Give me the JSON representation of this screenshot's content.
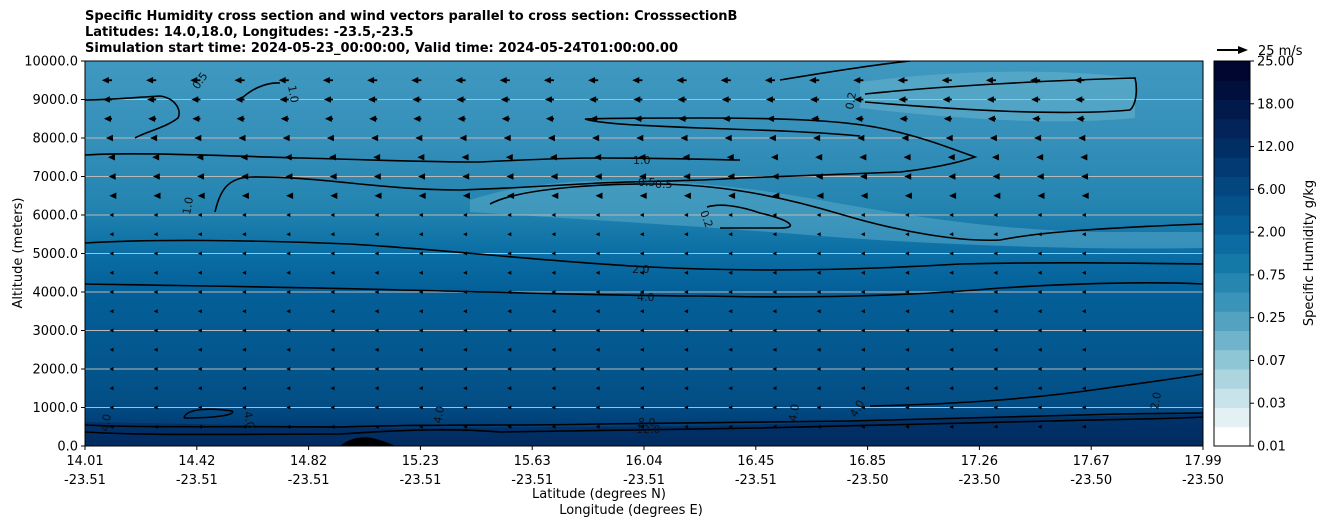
{
  "chart_data": {
    "type": "heatmap",
    "title_lines": [
      "Specific Humidity cross section and wind vectors parallel to cross section: CrosssectionB",
      "Latitudes: 14.0,18.0, Longitudes: -23.5,-23.5",
      "Simulation start time: 2024-05-23_00:00:00, Valid time: 2024-05-24T01:00:00.00"
    ],
    "ylabel": "Altitude (meters)",
    "xlabel_lat": "Latitude (degrees N)",
    "xlabel_lon": "Longitude (degrees E)",
    "ylim": [
      0,
      10000
    ],
    "y_ticks": [
      "0.0",
      "1000.0",
      "2000.0",
      "3000.0",
      "4000.0",
      "5000.0",
      "6000.0",
      "7000.0",
      "8000.0",
      "9000.0",
      "10000.0"
    ],
    "x_ticks": [
      {
        "lat": "14.01",
        "lon": "-23.51"
      },
      {
        "lat": "14.42",
        "lon": "-23.51"
      },
      {
        "lat": "14.82",
        "lon": "-23.51"
      },
      {
        "lat": "15.23",
        "lon": "-23.51"
      },
      {
        "lat": "15.63",
        "lon": "-23.51"
      },
      {
        "lat": "16.04",
        "lon": "-23.51"
      },
      {
        "lat": "16.45",
        "lon": "-23.51"
      },
      {
        "lat": "16.85",
        "lon": "-23.50"
      },
      {
        "lat": "17.26",
        "lon": "-23.50"
      },
      {
        "lat": "17.67",
        "lon": "-23.50"
      },
      {
        "lat": "17.99",
        "lon": "-23.50"
      }
    ],
    "colorbar": {
      "label": "Specific Humidity g/kg",
      "levels": [
        "0.01",
        "0.03",
        "0.07",
        "0.25",
        "0.75",
        "2.00",
        "6.00",
        "12.00",
        "18.00",
        "25.00"
      ],
      "colors": [
        "#ffffff",
        "#e4f1f4",
        "#c8e3ea",
        "#acd5e0",
        "#8fc6d6",
        "#70b4cb",
        "#52a2c0",
        "#3a93b8",
        "#2686b0",
        "#1579a8",
        "#0c6ba0",
        "#075e96",
        "#05528b",
        "#044680",
        "#033a74",
        "#022e66",
        "#022459",
        "#01194b",
        "#010f3d",
        "#00062f"
      ]
    },
    "wind_key": {
      "label": "25 m/s",
      "speed": 25
    },
    "contour_labels": [
      "0.2",
      "0.5",
      "1.0",
      "2.0",
      "4.0",
      "8.0",
      "12.0"
    ],
    "humidity_profile": [
      {
        "altitude": 0,
        "q": 14.0
      },
      {
        "altitude": 500,
        "q": 12.5
      },
      {
        "altitude": 1000,
        "q": 9.5
      },
      {
        "altitude": 2000,
        "q": 7.5
      },
      {
        "altitude": 3000,
        "q": 6.0
      },
      {
        "altitude": 4000,
        "q": 4.2
      },
      {
        "altitude": 5000,
        "q": 2.2
      },
      {
        "altitude": 6000,
        "q": 1.0
      },
      {
        "altitude": 7000,
        "q": 0.7
      },
      {
        "altitude": 8000,
        "q": 0.55
      },
      {
        "altitude": 9000,
        "q": 0.45
      },
      {
        "altitude": 10000,
        "q": 0.4
      }
    ],
    "wind_u_profile": [
      {
        "altitude": 500,
        "u": -1
      },
      {
        "altitude": 2000,
        "u": -1
      },
      {
        "altitude": 4000,
        "u": -1.5
      },
      {
        "altitude": 6000,
        "u": -2
      },
      {
        "altitude": 7500,
        "u": -4
      },
      {
        "altitude": 8500,
        "u": -8
      },
      {
        "altitude": 9500,
        "u": -10
      }
    ]
  }
}
